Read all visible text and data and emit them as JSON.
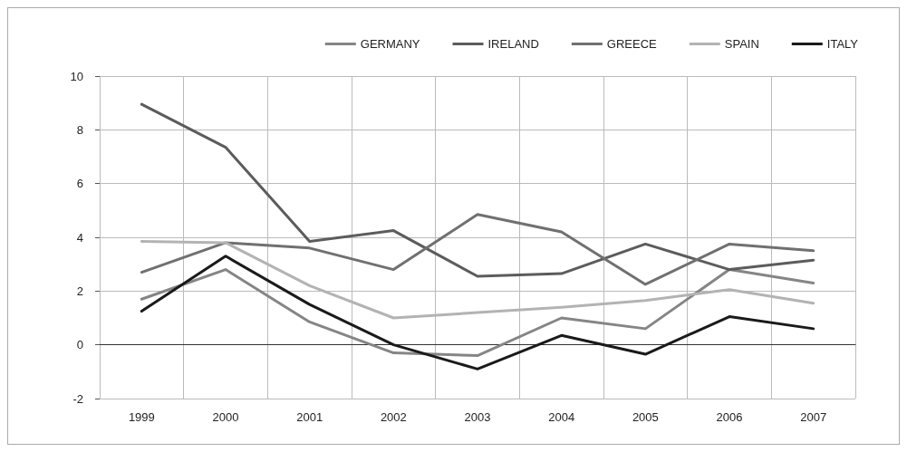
{
  "chart_data": {
    "type": "line",
    "categories": [
      "1999",
      "2000",
      "2001",
      "2002",
      "2003",
      "2004",
      "2005",
      "2006",
      "2007"
    ],
    "series": [
      {
        "name": "GERMANY",
        "color": "#858585",
        "values": [
          1.7,
          2.8,
          0.85,
          -0.3,
          -0.4,
          1.0,
          0.6,
          2.8,
          2.3
        ]
      },
      {
        "name": "IRELAND",
        "color": "#5c5c5c",
        "values": [
          8.95,
          7.35,
          3.85,
          4.25,
          2.55,
          2.65,
          3.75,
          2.8,
          3.15
        ]
      },
      {
        "name": "GREECE",
        "color": "#707070",
        "values": [
          2.7,
          3.8,
          3.6,
          2.8,
          4.85,
          4.2,
          2.25,
          3.75,
          3.5
        ]
      },
      {
        "name": "SPAIN",
        "color": "#b3b3b3",
        "values": [
          3.85,
          3.8,
          2.2,
          1.0,
          1.2,
          1.4,
          1.65,
          2.05,
          1.55
        ]
      },
      {
        "name": "ITALY",
        "color": "#1a1a1a",
        "values": [
          1.25,
          3.3,
          1.5,
          0.0,
          -0.9,
          0.35,
          -0.35,
          1.05,
          0.6
        ]
      }
    ],
    "ylim": [
      -2,
      10
    ],
    "yticks": [
      -2,
      0,
      2,
      4,
      6,
      8,
      10
    ],
    "grid": true,
    "legend": "top right",
    "marker": "none",
    "line_style": "solid"
  }
}
